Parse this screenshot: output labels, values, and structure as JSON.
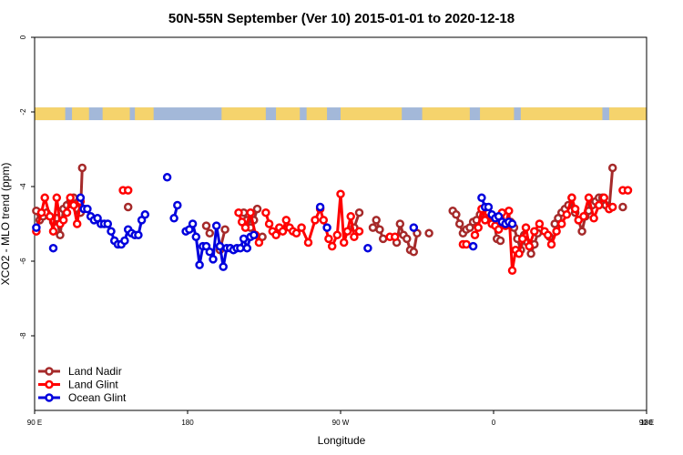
{
  "chart_data": {
    "type": "line",
    "title": "50N-55N September (Ver 10)   2015-01-01 to 2020-12-18",
    "xlabel": "Longitude",
    "ylabel": "XCO2 - MLO trend (ppm)",
    "xlim": [
      90,
      450
    ],
    "ylim": [
      -10,
      0
    ],
    "x_ticks": [
      {
        "value": 90,
        "label": "90 E"
      },
      {
        "value": 180,
        "label": "180"
      },
      {
        "value": 270,
        "label": "90 W"
      },
      {
        "value": 360,
        "label": "0"
      },
      {
        "value": 450,
        "label": "90 E"
      },
      {
        "value": 540,
        "label": "180"
      }
    ],
    "y_ticks": [
      {
        "value": 0,
        "label": "0"
      },
      {
        "value": -2,
        "label": "-2"
      },
      {
        "value": -4,
        "label": "-4"
      },
      {
        "value": -6,
        "label": "-6"
      },
      {
        "value": -8,
        "label": "-8"
      }
    ],
    "grid": false,
    "legend_position": "bottom-left",
    "land_ocean_strip": {
      "y_center": -2.05,
      "land_color": "#f5d36c",
      "ocean_color": "#a3b8d9"
    },
    "series": [
      {
        "name": "Land Nadir",
        "color": "#a52a2a",
        "segments": [
          [
            [
              91,
              -4.65
            ],
            [
              93,
              -4.9
            ],
            [
              95,
              -4.8
            ],
            [
              97,
              -4.7
            ],
            [
              99,
              -4.8
            ],
            [
              101,
              -4.95
            ],
            [
              103,
              -4.85
            ],
            [
              105,
              -5.3
            ],
            [
              107,
              -4.6
            ],
            [
              109,
              -4.5
            ],
            [
              111,
              -4.4
            ],
            [
              113,
              -4.3
            ],
            [
              115,
              -4.6
            ],
            [
              117,
              -4.7
            ],
            [
              118,
              -3.5
            ]
          ],
          [
            [
              145,
              -4.55
            ]
          ],
          [
            [
              191,
              -5.05
            ],
            [
              193,
              -5.25
            ]
          ],
          [
            [
              199,
              -5.7
            ],
            [
              202,
              -5.15
            ]
          ],
          [
            [
              213,
              -4.7
            ],
            [
              215,
              -4.9
            ],
            [
              217,
              -5.1
            ],
            [
              219,
              -4.9
            ],
            [
              221,
              -4.6
            ]
          ],
          [
            [
              224,
              -5.35
            ]
          ],
          [
            [
              278,
              -5.1
            ],
            [
              281,
              -4.7
            ]
          ],
          [
            [
              289,
              -5.1
            ],
            [
              291,
              -4.9
            ],
            [
              293,
              -5.15
            ],
            [
              295,
              -5.4
            ]
          ],
          [
            [
              303,
              -5.5
            ],
            [
              305,
              -5.0
            ],
            [
              307,
              -5.3
            ],
            [
              309,
              -5.4
            ],
            [
              311,
              -5.7
            ],
            [
              313,
              -5.75
            ],
            [
              315,
              -5.25
            ]
          ],
          [
            [
              322,
              -5.25
            ]
          ],
          [
            [
              336,
              -4.65
            ],
            [
              338,
              -4.75
            ],
            [
              340,
              -5.0
            ],
            [
              342,
              -5.25
            ],
            [
              344,
              -5.15
            ]
          ],
          [
            [
              346,
              -5.1
            ],
            [
              348,
              -4.95
            ],
            [
              350,
              -4.9
            ],
            [
              352,
              -4.75
            ],
            [
              354,
              -4.65
            ],
            [
              356,
              -4.75
            ],
            [
              358,
              -4.85
            ],
            [
              360,
              -4.9
            ],
            [
              362,
              -5.4
            ],
            [
              364,
              -5.45
            ]
          ],
          [
            [
              368,
              -5.0
            ],
            [
              370,
              -4.95
            ],
            [
              372,
              -5.1
            ],
            [
              374,
              -5.4
            ],
            [
              376,
              -5.7
            ],
            [
              378,
              -5.3
            ],
            [
              380,
              -5.5
            ],
            [
              382,
              -5.8
            ],
            [
              384,
              -5.55
            ],
            [
              386,
              -5.25
            ]
          ],
          [
            [
              393,
              -5.35
            ]
          ],
          [
            [
              396,
              -5.0
            ],
            [
              398,
              -4.85
            ],
            [
              400,
              -4.7
            ],
            [
              402,
              -4.6
            ],
            [
              404,
              -4.5
            ],
            [
              406,
              -4.3
            ],
            [
              408,
              -4.7
            ],
            [
              410,
              -4.9
            ],
            [
              412,
              -5.2
            ],
            [
              414,
              -4.8
            ],
            [
              416,
              -4.65
            ],
            [
              418,
              -4.5
            ],
            [
              420,
              -4.4
            ],
            [
              422,
              -4.3
            ],
            [
              424,
              -4.3
            ],
            [
              426,
              -4.5
            ],
            [
              428,
              -4.6
            ],
            [
              430,
              -3.5
            ]
          ],
          [
            [
              436,
              -4.55
            ]
          ]
        ]
      },
      {
        "name": "Land Glint",
        "color": "#ff0000",
        "segments": [
          [
            [
              91,
              -5.2
            ],
            [
              94,
              -4.7
            ],
            [
              96,
              -4.3
            ],
            [
              99,
              -4.8
            ],
            [
              101,
              -5.2
            ],
            [
              103,
              -4.3
            ],
            [
              105,
              -5.0
            ],
            [
              107,
              -4.9
            ],
            [
              109,
              -4.7
            ],
            [
              111,
              -4.3
            ],
            [
              113,
              -4.5
            ],
            [
              115,
              -5.0
            ],
            [
              117,
              -4.4
            ],
            [
              119,
              -4.6
            ]
          ],
          [
            [
              142,
              -4.1
            ],
            [
              145,
              -4.1
            ]
          ],
          [
            [
              210,
              -4.7
            ],
            [
              212,
              -4.95
            ],
            [
              214,
              -5.1
            ],
            [
              217,
              -4.7
            ],
            [
              220,
              -5.3
            ],
            [
              222,
              -5.5
            ]
          ],
          [
            [
              226,
              -4.7
            ],
            [
              228,
              -5.0
            ],
            [
              230,
              -5.2
            ],
            [
              232,
              -5.3
            ],
            [
              234,
              -5.1
            ],
            [
              236,
              -5.2
            ],
            [
              238,
              -4.9
            ],
            [
              240,
              -5.1
            ],
            [
              242,
              -5.2
            ],
            [
              244,
              -5.25
            ],
            [
              247,
              -5.1
            ],
            [
              251,
              -5.5
            ],
            [
              255,
              -4.9
            ],
            [
              258,
              -4.6
            ],
            [
              260,
              -4.9
            ],
            [
              263,
              -5.4
            ],
            [
              265,
              -5.6
            ],
            [
              268,
              -5.3
            ],
            [
              270,
              -4.2
            ],
            [
              272,
              -5.5
            ],
            [
              274,
              -5.2
            ],
            [
              276,
              -4.8
            ],
            [
              278,
              -5.35
            ],
            [
              281,
              -5.2
            ]
          ],
          [
            [
              299,
              -5.35
            ],
            [
              302,
              -5.35
            ]
          ],
          [
            [
              342,
              -5.55
            ],
            [
              344,
              -5.55
            ]
          ],
          [
            [
              349,
              -5.3
            ],
            [
              351,
              -5.1
            ],
            [
              353,
              -4.6
            ],
            [
              355,
              -4.9
            ],
            [
              357,
              -4.7
            ],
            [
              359,
              -5.0
            ],
            [
              361,
              -5.05
            ],
            [
              363,
              -5.15
            ],
            [
              365,
              -4.7
            ],
            [
              367,
              -5.05
            ],
            [
              369,
              -4.65
            ],
            [
              371,
              -6.25
            ],
            [
              373,
              -5.7
            ],
            [
              375,
              -5.8
            ],
            [
              377,
              -5.4
            ],
            [
              379,
              -5.1
            ],
            [
              381,
              -5.6
            ],
            [
              384,
              -5.2
            ],
            [
              387,
              -5.0
            ],
            [
              390,
              -5.2
            ],
            [
              392,
              -5.3
            ],
            [
              394,
              -5.55
            ],
            [
              397,
              -5.2
            ],
            [
              400,
              -5.0
            ],
            [
              403,
              -4.75
            ],
            [
              406,
              -4.3
            ],
            [
              408,
              -4.6
            ],
            [
              410,
              -4.9
            ],
            [
              413,
              -4.8
            ],
            [
              416,
              -4.3
            ],
            [
              419,
              -4.85
            ],
            [
              422,
              -4.5
            ],
            [
              425,
              -4.3
            ],
            [
              428,
              -4.6
            ],
            [
              430,
              -4.55
            ]
          ],
          [
            [
              436,
              -4.1
            ],
            [
              439,
              -4.1
            ]
          ]
        ]
      },
      {
        "name": "Ocean Glint",
        "color": "#0000dd",
        "segments": [
          [
            [
              91,
              -5.1
            ]
          ],
          [
            [
              101,
              -5.65
            ]
          ],
          [
            [
              117,
              -4.3
            ],
            [
              119,
              -4.6
            ],
            [
              121,
              -4.6
            ],
            [
              123,
              -4.8
            ],
            [
              125,
              -4.9
            ],
            [
              127,
              -4.85
            ],
            [
              129,
              -5.0
            ],
            [
              131,
              -5.0
            ],
            [
              133,
              -5.0
            ],
            [
              135,
              -5.2
            ],
            [
              137,
              -5.45
            ],
            [
              139,
              -5.55
            ],
            [
              141,
              -5.55
            ],
            [
              143,
              -5.45
            ],
            [
              145,
              -5.15
            ],
            [
              147,
              -5.25
            ],
            [
              149,
              -5.3
            ],
            [
              151,
              -5.3
            ],
            [
              153,
              -4.9
            ],
            [
              155,
              -4.75
            ]
          ],
          [
            [
              168,
              -3.75
            ]
          ],
          [
            [
              172,
              -4.85
            ],
            [
              174,
              -4.5
            ]
          ],
          [
            [
              179,
              -5.2
            ],
            [
              181,
              -5.15
            ],
            [
              183,
              -5.0
            ],
            [
              185,
              -5.35
            ],
            [
              187,
              -6.1
            ],
            [
              189,
              -5.6
            ],
            [
              191,
              -5.6
            ],
            [
              193,
              -5.75
            ],
            [
              195,
              -5.95
            ],
            [
              197,
              -5.05
            ],
            [
              199,
              -5.6
            ],
            [
              201,
              -6.15
            ],
            [
              203,
              -5.65
            ],
            [
              205,
              -5.65
            ],
            [
              207,
              -5.7
            ],
            [
              209,
              -5.65
            ],
            [
              211,
              -5.65
            ],
            [
              213,
              -5.4
            ],
            [
              215,
              -5.65
            ],
            [
              217,
              -5.35
            ],
            [
              219,
              -5.3
            ]
          ],
          [
            [
              258,
              -4.55
            ]
          ],
          [
            [
              262,
              -5.1
            ]
          ],
          [
            [
              286,
              -5.65
            ]
          ],
          [
            [
              313,
              -5.1
            ]
          ],
          [
            [
              348,
              -5.6
            ]
          ],
          [
            [
              353,
              -4.3
            ],
            [
              355,
              -4.55
            ],
            [
              357,
              -4.55
            ],
            [
              359,
              -4.75
            ],
            [
              361,
              -4.85
            ],
            [
              363,
              -4.8
            ],
            [
              365,
              -4.95
            ],
            [
              367,
              -5.0
            ],
            [
              369,
              -4.95
            ],
            [
              371,
              -5.0
            ]
          ]
        ]
      }
    ]
  }
}
